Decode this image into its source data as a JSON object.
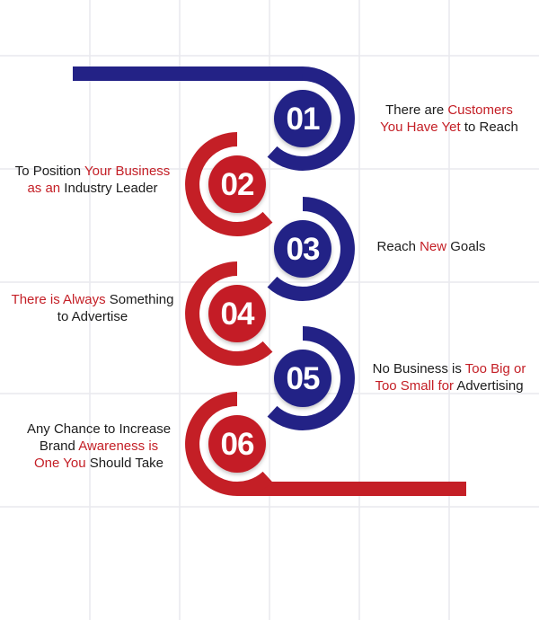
{
  "colors": {
    "blue": "#232286",
    "red": "#c41f26",
    "grid": "#e9e9ee",
    "text": "#1c1c1c",
    "highlight": "#c41f26"
  },
  "steps": [
    {
      "number": "01",
      "color": "blue",
      "side": "right",
      "lines": [
        [
          {
            "t": "There are ",
            "hl": false
          },
          {
            "t": "Customers",
            "hl": true
          }
        ],
        [
          {
            "t": "You Have Yet",
            "hl": true
          },
          {
            "t": " to Reach",
            "hl": false
          }
        ]
      ]
    },
    {
      "number": "02",
      "color": "red",
      "side": "left",
      "lines": [
        [
          {
            "t": "To Position ",
            "hl": false
          },
          {
            "t": "Your Business",
            "hl": true
          }
        ],
        [
          {
            "t": "as an",
            "hl": true
          },
          {
            "t": " Industry Leader",
            "hl": false
          }
        ]
      ]
    },
    {
      "number": "03",
      "color": "blue",
      "side": "right",
      "lines": [
        [
          {
            "t": "Reach ",
            "hl": false
          },
          {
            "t": "New",
            "hl": true
          },
          {
            "t": " Goals",
            "hl": false
          }
        ]
      ]
    },
    {
      "number": "04",
      "color": "red",
      "side": "left",
      "lines": [
        [
          {
            "t": "There is Always",
            "hl": true
          },
          {
            "t": " Something",
            "hl": false
          }
        ],
        [
          {
            "t": "to Advertise",
            "hl": false
          }
        ]
      ]
    },
    {
      "number": "05",
      "color": "blue",
      "side": "right",
      "lines": [
        [
          {
            "t": "No Business is ",
            "hl": false
          },
          {
            "t": "Too Big or",
            "hl": true
          }
        ],
        [
          {
            "t": "Too Small for",
            "hl": true
          },
          {
            "t": " Advertising",
            "hl": false
          }
        ]
      ]
    },
    {
      "number": "06",
      "color": "red",
      "side": "left",
      "lines": [
        [
          {
            "t": "Any Chance to Increase",
            "hl": false
          }
        ],
        [
          {
            "t": "Brand ",
            "hl": false
          },
          {
            "t": "Awareness is",
            "hl": true
          }
        ],
        [
          {
            "t": "One You",
            "hl": true
          },
          {
            "t": " Should Take",
            "hl": false
          }
        ]
      ]
    }
  ]
}
